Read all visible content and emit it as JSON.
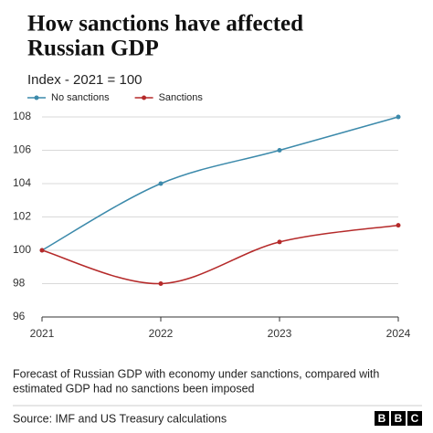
{
  "chart_data": {
    "type": "line",
    "title": [
      "How sanctions have affected",
      "Russian GDP"
    ],
    "subtitle": "Index - 2021 = 100",
    "x": [
      2021,
      2022,
      2023,
      2024
    ],
    "xlim": [
      2021,
      2024
    ],
    "xticks": [
      2021,
      2022,
      2023,
      2024
    ],
    "ylim": [
      96,
      108
    ],
    "yticks": [
      96,
      98,
      100,
      102,
      104,
      106,
      108
    ],
    "grid": true,
    "legend": "top-left",
    "series": [
      {
        "name": "No sanctions",
        "color": "#3c8aab",
        "values": [
          100,
          104,
          106,
          108
        ]
      },
      {
        "name": "Sanctions",
        "color": "#b52a2a",
        "values": [
          100,
          98,
          100.5,
          101.5
        ]
      }
    ],
    "caption": [
      "Forecast of Russian GDP with economy under sanctions, compared with",
      "estimated GDP had no sanctions been imposed"
    ],
    "source": "Source: IMF and US Treasury calculations",
    "logo": [
      "B",
      "B",
      "C"
    ]
  }
}
